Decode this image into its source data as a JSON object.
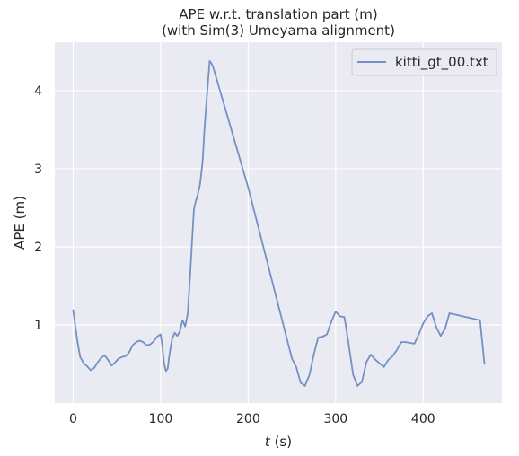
{
  "chart_data": {
    "type": "line",
    "title": [
      "APE w.r.t. translation part (m)",
      "(with Sim(3) Umeyama alignment)"
    ],
    "xlabel_italic": "t",
    "xlabel_unit": " (s)",
    "ylabel": "APE (m)",
    "xlim": [
      -21,
      490
    ],
    "ylim": [
      0,
      4.62
    ],
    "xticks": [
      0,
      100,
      200,
      300,
      400
    ],
    "yticks": [
      1,
      2,
      3,
      4
    ],
    "grid": true,
    "legend_position": "top-right",
    "line_color": "#7391c4",
    "background_color": "#eaeaf2",
    "series": [
      {
        "name": "kitti_gt_00.txt",
        "x": [
          0,
          2,
          5,
          8,
          12,
          16,
          20,
          24,
          28,
          32,
          36,
          40,
          44,
          48,
          52,
          56,
          60,
          64,
          68,
          72,
          76,
          80,
          84,
          88,
          92,
          96,
          100,
          102,
          104,
          106,
          108,
          110,
          113,
          116,
          119,
          122,
          125,
          128,
          131,
          134,
          136,
          138,
          140,
          142,
          145,
          148,
          150,
          152,
          154,
          156,
          158,
          160,
          200,
          250,
          255,
          260,
          265,
          270,
          275,
          280,
          285,
          290,
          295,
          300,
          305,
          310,
          315,
          320,
          325,
          330,
          335,
          340,
          345,
          350,
          355,
          360,
          365,
          370,
          375,
          380,
          385,
          390,
          395,
          400,
          405,
          410,
          415,
          420,
          425,
          430,
          465,
          470
        ],
        "y": [
          1.19,
          1.02,
          0.78,
          0.59,
          0.51,
          0.47,
          0.42,
          0.45,
          0.52,
          0.58,
          0.61,
          0.55,
          0.48,
          0.52,
          0.57,
          0.59,
          0.6,
          0.65,
          0.74,
          0.78,
          0.8,
          0.78,
          0.74,
          0.75,
          0.79,
          0.85,
          0.88,
          0.72,
          0.5,
          0.41,
          0.44,
          0.62,
          0.82,
          0.9,
          0.86,
          0.92,
          1.06,
          0.98,
          1.15,
          1.7,
          2.1,
          2.48,
          2.58,
          2.65,
          2.8,
          3.1,
          3.5,
          3.8,
          4.1,
          4.38,
          4.35,
          4.3,
          2.76,
          0.57,
          0.46,
          0.26,
          0.22,
          0.36,
          0.62,
          0.84,
          0.85,
          0.88,
          1.04,
          1.17,
          1.11,
          1.1,
          0.74,
          0.36,
          0.22,
          0.27,
          0.52,
          0.62,
          0.56,
          0.51,
          0.46,
          0.55,
          0.6,
          0.68,
          0.78,
          0.78,
          0.77,
          0.76,
          0.88,
          1.02,
          1.11,
          1.15,
          0.97,
          0.86,
          0.95,
          1.15,
          1.06,
          0.5
        ]
      }
    ]
  }
}
